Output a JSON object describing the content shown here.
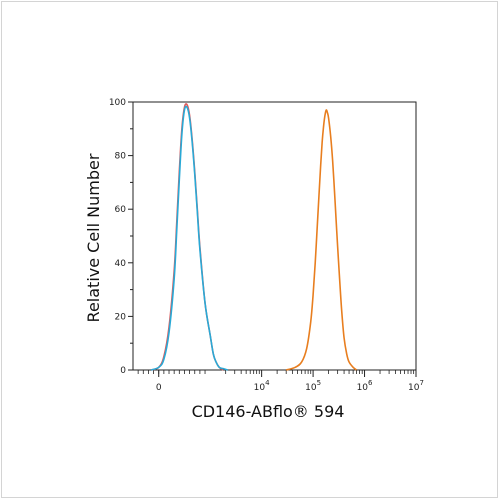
{
  "chart_data": {
    "type": "line",
    "title": "",
    "xlabel": "CD146-ABflo® 594",
    "ylabel": "Relative Cell Number",
    "xscale": "biexponential",
    "xlim": [
      -500,
      10000000
    ],
    "ylim": [
      0,
      100
    ],
    "grid": false,
    "legend": "none",
    "y_ticks": [
      0,
      20,
      40,
      60,
      80,
      100
    ],
    "x_tick_labels": [
      {
        "value": 0,
        "base": "0",
        "exp": ""
      },
      {
        "value": 10000,
        "base": "10",
        "exp": "4"
      },
      {
        "value": 100000,
        "base": "10",
        "exp": "5"
      },
      {
        "value": 1000000,
        "base": "10",
        "exp": "6"
      },
      {
        "value": 10000000,
        "base": "10",
        "exp": "7"
      }
    ],
    "series": [
      {
        "color": "#e05a5a",
        "x": [
          -150,
          0,
          100,
          200,
          300,
          350,
          400,
          450,
          500,
          550,
          600,
          650,
          700,
          750,
          800,
          900,
          1000,
          1150,
          1300,
          1500,
          1800
        ],
        "y": [
          0,
          1,
          5,
          16,
          37,
          55,
          74,
          90,
          98,
          99,
          95,
          86,
          74,
          60,
          46,
          25,
          13,
          6,
          3,
          1,
          0
        ]
      },
      {
        "color": "#29a9d6",
        "x": [
          -150,
          0,
          100,
          200,
          300,
          350,
          400,
          450,
          500,
          550,
          600,
          650,
          700,
          750,
          800,
          900,
          1000,
          1150,
          1300,
          1500,
          1800,
          2200
        ],
        "y": [
          0,
          1,
          4,
          14,
          34,
          52,
          71,
          88,
          97,
          98,
          94,
          85,
          73,
          59,
          45,
          25,
          13,
          6,
          3,
          1,
          0.5,
          0
        ]
      },
      {
        "color": "#e87e1f",
        "x": [
          30000,
          45000,
          60000,
          75000,
          90000,
          100000,
          110000,
          120000,
          130000,
          140000,
          150000,
          160000,
          170000,
          180000,
          190000,
          200000,
          220000,
          240000,
          260000,
          280000,
          300000,
          330000,
          360000,
          400000,
          450000,
          500000,
          600000,
          700000
        ],
        "y": [
          0,
          1,
          3,
          8,
          18,
          28,
          40,
          53,
          65,
          76,
          85,
          91,
          95,
          97,
          96,
          94,
          87,
          78,
          67,
          56,
          46,
          33,
          22,
          12,
          6,
          3,
          1,
          0
        ]
      }
    ]
  }
}
